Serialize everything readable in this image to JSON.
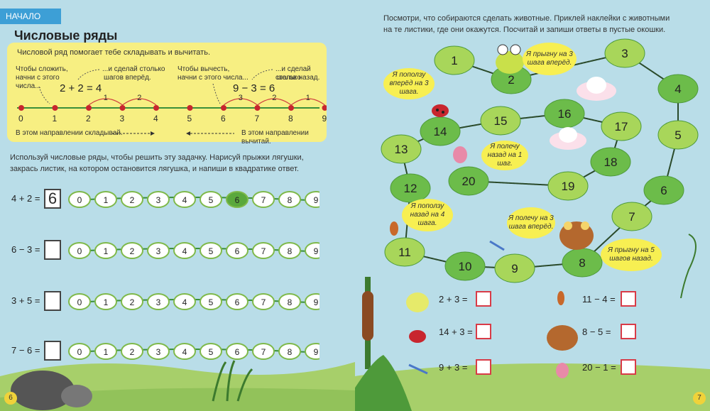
{
  "left_page": {
    "section_tag": "НАЧАЛО",
    "title": "Числовые ряды",
    "info": {
      "intro": "Числовой ряд помогает тебе складывать и вычитать.",
      "add_hint_1": "Чтобы сложить,",
      "add_hint_2": "начни с этого",
      "add_hint_3": "числа...",
      "add_steps_1": "...и сделай столько",
      "add_steps_2": "шагов вперёд.",
      "add_example": "2 + 2 = 4",
      "sub_hint_1": "Чтобы вычесть,",
      "sub_hint_2": "начни с этого числа...",
      "sub_steps_1": "...и сделай столько",
      "sub_steps_2": "шагов назад.",
      "sub_example": "9 − 3 = 6",
      "line_numbers": [
        "0",
        "1",
        "2",
        "3",
        "4",
        "5",
        "6",
        "7",
        "8",
        "9"
      ],
      "add_jumps": [
        "1",
        "2"
      ],
      "sub_jumps": [
        "3",
        "2",
        "1"
      ],
      "add_direction": "В этом направлении складывай.",
      "sub_direction": "В этом направлении вычитай."
    },
    "instruction_1": "Используй числовые ряды, чтобы решить эту задачку. Нарисуй прыжки лягушки,",
    "instruction_2": "закрась листик, на котором остановится лягушка, и напиши в квадратике ответ.",
    "exercises": [
      {
        "expr": "4 + 2 =",
        "answer": "6"
      },
      {
        "expr": "6 − 3 =",
        "answer": ""
      },
      {
        "expr": "3 + 5 =",
        "answer": ""
      },
      {
        "expr": "7 − 6 =",
        "answer": ""
      }
    ],
    "lily_numbers": [
      "0",
      "1",
      "2",
      "3",
      "4",
      "5",
      "6",
      "7",
      "8",
      "9"
    ],
    "page_number": "6"
  },
  "right_page": {
    "instruction_1": "Посмотри, что собираются сделать животные. Приклей наклейки с животными",
    "instruction_2": "на те листики, где они окажутся. Посчитай и запиши ответы в пустые окошки.",
    "path_numbers": [
      "1",
      "2",
      "3",
      "4",
      "5",
      "6",
      "7",
      "8",
      "9",
      "10",
      "11",
      "12",
      "13",
      "14",
      "15",
      "16",
      "17",
      "18",
      "19",
      "20"
    ],
    "bubbles": {
      "frog": "Я прыгну на 3 шага вперёд.",
      "ladybug": "Я поползу вперёд на 3 шага.",
      "butterfly": "Я полечу назад на 1 шаг.",
      "ant": "Я поползу назад на 4 шага.",
      "dragonfly": "Я полечу на 3 шага вперёд.",
      "toad": "Я прыгну на 5 шагов назад."
    },
    "exercises_left": [
      "2 + 3 =",
      "14 + 3 =",
      "9 + 3 ="
    ],
    "exercises_right": [
      "11 − 4 =",
      "8 − 5 =",
      "20 − 1 ="
    ],
    "page_number": "7"
  },
  "colors": {
    "background": "#b9dde8",
    "info_box": "#f7ef82",
    "tag": "#3d9fd6",
    "lily_light": "#a8d65a",
    "lily_dark": "#5aa83c",
    "answer_border": "#d93b47",
    "bubble": "#f7ef52"
  }
}
